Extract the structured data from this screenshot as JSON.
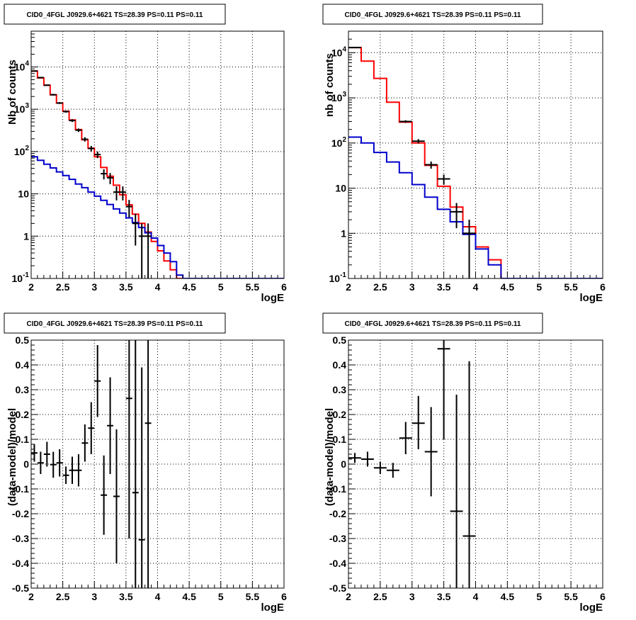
{
  "chart_data": [
    {
      "type": "histogram",
      "title": "CID0_4FGL J0929.6+4621 TS=28.39 PS=0.11 PS=0.11",
      "xlabel": "logE",
      "ylabel": "Nb of counts",
      "xlim": [
        2,
        6
      ],
      "ylim": [
        0.1,
        70000
      ],
      "yscale": "log",
      "grid": true,
      "xticks": [
        "2",
        "2.5",
        "3",
        "3.5",
        "4",
        "4.5",
        "5",
        "5.5",
        "6"
      ],
      "yticks": [
        {
          "v": 0.1,
          "t": "10",
          "sup": "-1"
        },
        {
          "v": 1,
          "t": "1",
          "sup": ""
        },
        {
          "v": 10,
          "t": "10",
          "sup": ""
        },
        {
          "v": 100,
          "t": "10",
          "sup": "2"
        },
        {
          "v": 1000,
          "t": "10",
          "sup": "3"
        },
        {
          "v": 10000,
          "t": "10",
          "sup": "4"
        }
      ],
      "bin_edges": [
        2.0,
        2.1,
        2.2,
        2.3,
        2.4,
        2.5,
        2.6,
        2.7,
        2.8,
        2.9,
        3.0,
        3.1,
        3.2,
        3.3,
        3.4,
        3.5,
        3.6,
        3.7,
        3.8,
        3.9,
        4.0,
        4.1,
        4.2,
        4.3,
        4.4,
        4.5,
        4.6,
        4.7,
        4.8,
        4.9,
        5.0,
        5.1,
        5.2,
        5.3,
        5.4,
        5.5,
        5.6,
        5.7,
        5.8,
        5.9,
        6.0
      ],
      "series": [
        {
          "name": "",
          "color": "#ff0000",
          "style": "step",
          "values": [
            8000,
            5500,
            3700,
            2200,
            1400,
            900,
            560,
            330,
            190,
            120,
            75,
            42,
            26,
            16,
            9.5,
            5.5,
            3.3,
            2.0,
            1.25,
            0.75,
            0.45,
            0.26,
            0.16,
            0.1,
            0.1,
            0.1,
            0.1,
            0.1,
            0.1,
            0.1,
            0.1,
            0.1,
            0.1,
            0.1,
            0.1,
            0.1,
            0.1,
            0.1,
            0.1,
            0.1
          ]
        },
        {
          "name": "",
          "color": "#0000cc",
          "style": "step",
          "values": [
            75,
            62,
            50,
            41,
            33,
            27,
            22,
            17,
            14,
            11,
            8.8,
            7.0,
            5.6,
            4.4,
            3.5,
            2.7,
            2.1,
            1.6,
            1.2,
            0.9,
            0.6,
            0.4,
            0.25,
            0.12,
            0.1,
            0.1,
            0.1,
            0.1,
            0.1,
            0.1,
            0.1,
            0.1,
            0.1,
            0.1,
            0.1,
            0.1,
            0.1,
            0.1,
            0.1,
            0.1
          ]
        },
        {
          "name": "",
          "color": "#000000",
          "style": "errorbar",
          "points": [
            {
              "x": 2.05,
              "y": 8000,
              "lo": 7850,
              "hi": 8150
            },
            {
              "x": 2.15,
              "y": 5600,
              "lo": 5450,
              "hi": 5750
            },
            {
              "x": 2.25,
              "y": 3700,
              "lo": 3580,
              "hi": 3820
            },
            {
              "x": 2.35,
              "y": 2200,
              "lo": 2110,
              "hi": 2290
            },
            {
              "x": 2.45,
              "y": 1400,
              "lo": 1330,
              "hi": 1470
            },
            {
              "x": 2.55,
              "y": 880,
              "lo": 830,
              "hi": 930
            },
            {
              "x": 2.65,
              "y": 540,
              "lo": 500,
              "hi": 580
            },
            {
              "x": 2.75,
              "y": 320,
              "lo": 290,
              "hi": 350
            },
            {
              "x": 2.85,
              "y": 195,
              "lo": 172,
              "hi": 218
            },
            {
              "x": 2.95,
              "y": 118,
              "lo": 100,
              "hi": 136
            },
            {
              "x": 3.05,
              "y": 85,
              "lo": 70,
              "hi": 100
            },
            {
              "x": 3.15,
              "y": 30,
              "lo": 22,
              "hi": 38
            },
            {
              "x": 3.25,
              "y": 24,
              "lo": 17,
              "hi": 31
            },
            {
              "x": 3.35,
              "y": 11,
              "lo": 7,
              "hi": 15
            },
            {
              "x": 3.45,
              "y": 11,
              "lo": 7,
              "hi": 15
            },
            {
              "x": 3.55,
              "y": 5,
              "lo": 2.8,
              "hi": 7.2
            },
            {
              "x": 3.65,
              "y": 2,
              "lo": 0.6,
              "hi": 3.4
            },
            {
              "x": 3.75,
              "y": 1,
              "lo": 0.1,
              "hi": 2.0
            },
            {
              "x": 3.85,
              "y": 1,
              "lo": 0.1,
              "hi": 2.0
            }
          ]
        }
      ]
    },
    {
      "type": "histogram",
      "title": "CID0_4FGL J0929.6+4621 TS=28.39 PS=0.11 PS=0.11",
      "xlabel": "logE",
      "ylabel": "nb of counts",
      "xlim": [
        2,
        6
      ],
      "ylim": [
        0.1,
        30000
      ],
      "yscale": "log",
      "grid": true,
      "xticks": [
        "2",
        "2.5",
        "3",
        "3.5",
        "4",
        "4.5",
        "5",
        "5.5",
        "6"
      ],
      "yticks": [
        {
          "v": 0.1,
          "t": "10",
          "sup": "-1"
        },
        {
          "v": 1,
          "t": "1",
          "sup": ""
        },
        {
          "v": 10,
          "t": "10",
          "sup": ""
        },
        {
          "v": 100,
          "t": "10",
          "sup": "2"
        },
        {
          "v": 1000,
          "t": "10",
          "sup": "3"
        },
        {
          "v": 10000,
          "t": "10",
          "sup": "4"
        }
      ],
      "bin_edges": [
        2.0,
        2.2,
        2.4,
        2.6,
        2.8,
        3.0,
        3.2,
        3.4,
        3.6,
        3.8,
        4.0,
        4.2,
        4.4,
        4.6,
        4.8,
        5.0,
        5.2,
        5.4,
        5.6,
        5.8,
        6.0
      ],
      "series": [
        {
          "name": "",
          "color": "#ff0000",
          "style": "step",
          "values": [
            13000,
            6500,
            2700,
            800,
            290,
            100,
            32,
            11,
            3.8,
            1.4,
            0.5,
            0.26,
            0.1,
            0.1,
            0.1,
            0.1,
            0.1,
            0.1,
            0.1,
            0.1
          ]
        },
        {
          "name": "",
          "color": "#0000cc",
          "style": "step",
          "values": [
            135,
            100,
            62,
            38,
            22,
            12,
            6.3,
            3.4,
            1.8,
            0.95,
            0.45,
            0.2,
            0.1,
            0.1,
            0.1,
            0.1,
            0.1,
            0.1,
            0.1,
            0.1
          ]
        },
        {
          "name": "",
          "color": "#000000",
          "style": "errorbar",
          "points": [
            {
              "x": 2.1,
              "y": 13000,
              "lo": 12800,
              "hi": 13200
            },
            {
              "x": 2.9,
              "y": 300,
              "lo": 280,
              "hi": 320
            },
            {
              "x": 3.1,
              "y": 110,
              "lo": 98,
              "hi": 122
            },
            {
              "x": 3.3,
              "y": 33,
              "lo": 27,
              "hi": 39
            },
            {
              "x": 3.5,
              "y": 16,
              "lo": 12,
              "hi": 20
            },
            {
              "x": 3.7,
              "y": 3,
              "lo": 1.3,
              "hi": 4.7
            },
            {
              "x": 3.9,
              "y": 1,
              "lo": 0.1,
              "hi": 2.0
            }
          ]
        }
      ]
    },
    {
      "type": "errorbar",
      "title": "CID0_4FGL J0929.6+4621 TS=28.39 PS=0.11 PS=0.11",
      "xlabel": "logE",
      "ylabel": "(data-model)/model",
      "xlim": [
        2,
        6
      ],
      "ylim": [
        -0.5,
        0.5
      ],
      "yscale": "linear",
      "grid": true,
      "xticks": [
        "2",
        "2.5",
        "3",
        "3.5",
        "4",
        "4.5",
        "5",
        "5.5",
        "6"
      ],
      "yticks": [
        {
          "v": -0.5,
          "t": "-0.5",
          "sup": ""
        },
        {
          "v": -0.4,
          "t": "-0.4",
          "sup": ""
        },
        {
          "v": -0.3,
          "t": "-0.3",
          "sup": ""
        },
        {
          "v": -0.2,
          "t": "-0.2",
          "sup": ""
        },
        {
          "v": -0.1,
          "t": "-0.1",
          "sup": ""
        },
        {
          "v": 0,
          "t": "0",
          "sup": ""
        },
        {
          "v": 0.1,
          "t": "0.1",
          "sup": ""
        },
        {
          "v": 0.2,
          "t": "0.2",
          "sup": ""
        },
        {
          "v": 0.3,
          "t": "0.3",
          "sup": ""
        },
        {
          "v": 0.4,
          "t": "0.4",
          "sup": ""
        },
        {
          "v": 0.5,
          "t": "0.5",
          "sup": ""
        }
      ],
      "series": [
        {
          "name": "",
          "color": "#000000",
          "style": "errorbar",
          "halfwidth": 0.05,
          "points": [
            {
              "x": 2.05,
              "y": 0.045,
              "lo": 0.01,
              "hi": 0.08
            },
            {
              "x": 2.15,
              "y": 0.005,
              "lo": -0.04,
              "hi": 0.05
            },
            {
              "x": 2.25,
              "y": 0.04,
              "lo": -0.01,
              "hi": 0.09
            },
            {
              "x": 2.35,
              "y": -0.002,
              "lo": -0.055,
              "hi": 0.05
            },
            {
              "x": 2.45,
              "y": 0.005,
              "lo": -0.05,
              "hi": 0.06
            },
            {
              "x": 2.55,
              "y": -0.045,
              "lo": -0.08,
              "hi": -0.01
            },
            {
              "x": 2.65,
              "y": -0.025,
              "lo": -0.08,
              "hi": 0.03
            },
            {
              "x": 2.75,
              "y": -0.025,
              "lo": -0.09,
              "hi": 0.04
            },
            {
              "x": 2.85,
              "y": 0.085,
              "lo": 0.01,
              "hi": 0.16
            },
            {
              "x": 2.95,
              "y": 0.145,
              "lo": 0.04,
              "hi": 0.25
            },
            {
              "x": 3.05,
              "y": 0.335,
              "lo": 0.19,
              "hi": 0.48
            },
            {
              "x": 3.15,
              "y": -0.125,
              "lo": -0.285,
              "hi": 0.035
            },
            {
              "x": 3.25,
              "y": 0.155,
              "lo": -0.04,
              "hi": 0.35
            },
            {
              "x": 3.35,
              "y": -0.13,
              "lo": -0.4,
              "hi": 0.14
            },
            {
              "x": 3.55,
              "y": 0.265,
              "lo": -0.3,
              "hi": 0.5
            },
            {
              "x": 3.65,
              "y": -0.115,
              "lo": -0.5,
              "hi": 0.5
            },
            {
              "x": 3.75,
              "y": -0.305,
              "lo": -0.5,
              "hi": 0.39
            },
            {
              "x": 3.85,
              "y": 0.165,
              "lo": -0.5,
              "hi": 0.5
            }
          ]
        }
      ]
    },
    {
      "type": "errorbar",
      "title": "CID0_4FGL J0929.6+4621 TS=28.39 PS=0.11 PS=0.11",
      "xlabel": "logE",
      "ylabel": "(data-model)/model",
      "xlim": [
        2,
        6
      ],
      "ylim": [
        -0.5,
        0.5
      ],
      "yscale": "linear",
      "grid": true,
      "xticks": [
        "2",
        "2.5",
        "3",
        "3.5",
        "4",
        "4.5",
        "5",
        "5.5",
        "6"
      ],
      "yticks": [
        {
          "v": -0.5,
          "t": "-0.5",
          "sup": ""
        },
        {
          "v": -0.4,
          "t": "-0.4",
          "sup": ""
        },
        {
          "v": -0.3,
          "t": "-0.3",
          "sup": ""
        },
        {
          "v": -0.2,
          "t": "-0.2",
          "sup": ""
        },
        {
          "v": -0.1,
          "t": "-0.1",
          "sup": ""
        },
        {
          "v": 0,
          "t": "0",
          "sup": ""
        },
        {
          "v": 0.1,
          "t": "0.1",
          "sup": ""
        },
        {
          "v": 0.2,
          "t": "0.2",
          "sup": ""
        },
        {
          "v": 0.3,
          "t": "0.3",
          "sup": ""
        },
        {
          "v": 0.4,
          "t": "0.4",
          "sup": ""
        },
        {
          "v": 0.5,
          "t": "0.5",
          "sup": ""
        }
      ],
      "series": [
        {
          "name": "",
          "color": "#000000",
          "style": "errorbar",
          "halfwidth": 0.1,
          "points": [
            {
              "x": 2.1,
              "y": 0.025,
              "lo": 0.005,
              "hi": 0.045
            },
            {
              "x": 2.3,
              "y": 0.02,
              "lo": -0.01,
              "hi": 0.05
            },
            {
              "x": 2.5,
              "y": -0.015,
              "lo": -0.04,
              "hi": 0.01
            },
            {
              "x": 2.7,
              "y": -0.025,
              "lo": -0.055,
              "hi": 0.005
            },
            {
              "x": 2.9,
              "y": 0.105,
              "lo": 0.04,
              "hi": 0.17
            },
            {
              "x": 3.1,
              "y": 0.165,
              "lo": 0.06,
              "hi": 0.275
            },
            {
              "x": 3.3,
              "y": 0.05,
              "lo": -0.13,
              "hi": 0.23
            },
            {
              "x": 3.5,
              "y": 0.465,
              "lo": 0.1,
              "hi": 0.5
            },
            {
              "x": 3.7,
              "y": -0.19,
              "lo": -0.5,
              "hi": 0.28
            },
            {
              "x": 3.9,
              "y": -0.29,
              "lo": -0.5,
              "hi": 0.415
            }
          ]
        }
      ]
    }
  ]
}
